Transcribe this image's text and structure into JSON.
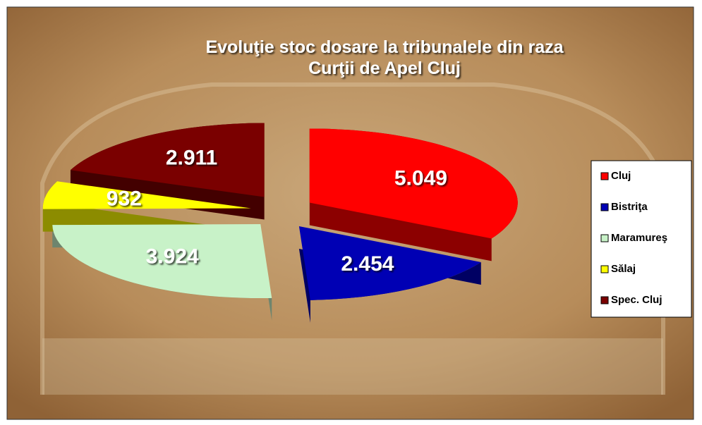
{
  "chart_data": {
    "type": "pie3d",
    "title": "Evoluţie stoc dosare la tribunalele din raza",
    "subtitle": "Curţii de Apel Cluj",
    "categories": [
      "Cluj",
      "Bistriţa",
      "Maramureş",
      "Sălaj",
      "Spec. Cluj"
    ],
    "values": [
      5049,
      2454,
      3924,
      932,
      2911
    ],
    "value_labels": [
      "5.049",
      "2.454",
      "3.924",
      "932",
      "2.911"
    ],
    "colors": [
      "#ff0000",
      "#0000b4",
      "#c8f2c8",
      "#ffff00",
      "#7a0000"
    ],
    "legend": "right"
  }
}
